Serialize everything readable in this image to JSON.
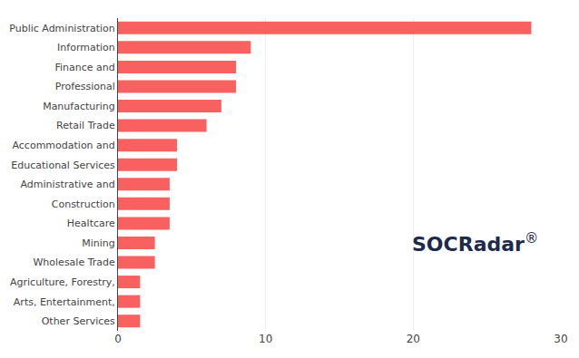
{
  "chart_data": {
    "type": "bar",
    "orientation": "horizontal",
    "categories": [
      "Public Administration",
      "Information",
      "Finance and",
      "Professional",
      "Manufacturing",
      "Retail Trade",
      "Accommodation and",
      "Educational Services",
      "Administrative and",
      "Construction",
      "Healtcare",
      "Mining",
      "Wholesale Trade",
      "Agriculture, Forestry,",
      "Arts, Entertainment,",
      "Other Services"
    ],
    "values": [
      28,
      9,
      8,
      8,
      7,
      6,
      4,
      4,
      3.5,
      3.5,
      3.5,
      2.5,
      2.5,
      1.5,
      1.5,
      1.5
    ],
    "color": "#f96060",
    "xlim": [
      0,
      30
    ],
    "xticks": [
      0,
      10,
      20,
      30
    ],
    "grid": true,
    "annotations": [
      {
        "text": "SOCRadar",
        "color": "#1e2a4a"
      },
      {
        "text": "®",
        "color": "#1e2a4a"
      }
    ]
  }
}
